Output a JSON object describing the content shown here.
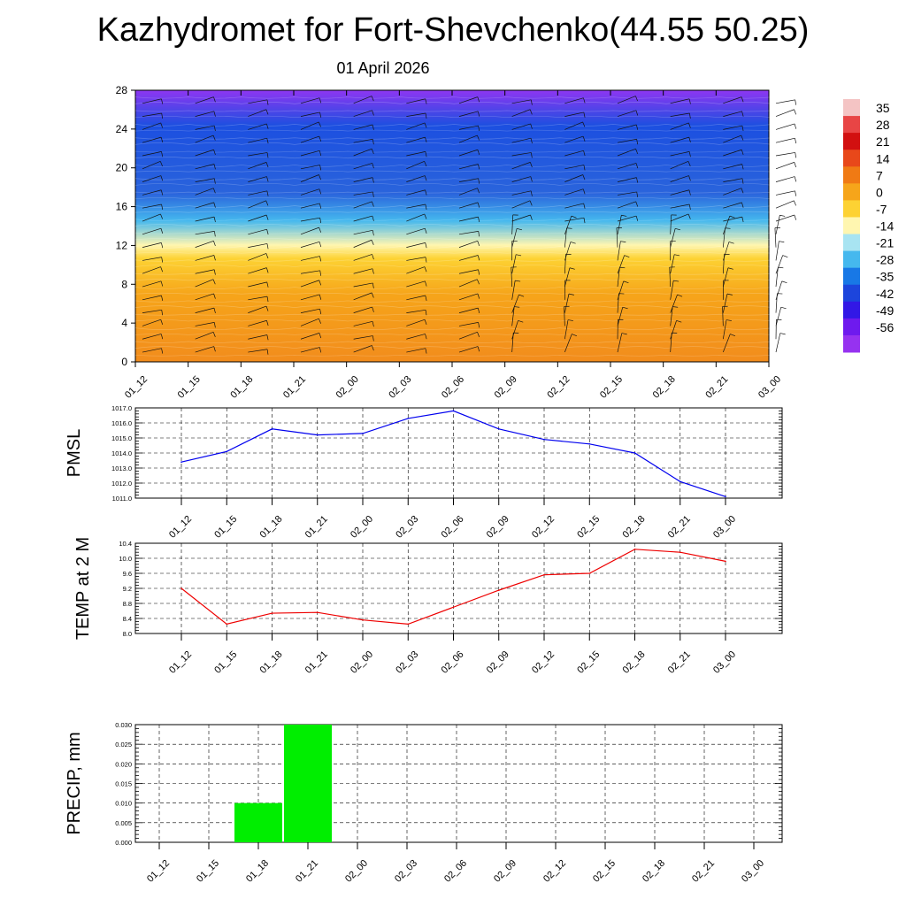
{
  "title": "Kazhydromet for Fort-Shevchenko(44.55 50.25)",
  "subtitle": "01 April 2026",
  "time_labels": [
    "01_12",
    "01_15",
    "01_18",
    "01_21",
    "02_00",
    "02_03",
    "02_06",
    "02_09",
    "02_12",
    "02_15",
    "02_18",
    "02_21",
    "03_00"
  ],
  "chart_data": [
    {
      "type": "heatmap",
      "y_ticks": [
        0,
        4,
        8,
        12,
        16,
        20,
        24,
        28
      ],
      "ylim": [
        0,
        28
      ],
      "categories": [
        "01_12",
        "01_15",
        "01_18",
        "01_21",
        "02_00",
        "02_03",
        "02_06",
        "02_09",
        "02_12",
        "02_15",
        "02_18",
        "02_21",
        "03_00"
      ],
      "colorbar": {
        "labels": [
          "35",
          "28",
          "21",
          "14",
          "7",
          "0",
          "-7",
          "-14",
          "-21",
          "-28",
          "-35",
          "-42",
          "-49",
          "-56"
        ],
        "colors": [
          "#f4c4c4",
          "#e84545",
          "#d21010",
          "#e8481a",
          "#f07a14",
          "#f6a51a",
          "#fdd233",
          "#fff6b0",
          "#a8e4f2",
          "#45b8ee",
          "#1878e6",
          "#1c45dc",
          "#3218e6",
          "#6e1aee",
          "#9632f0"
        ]
      },
      "field_colors": {
        "top": "#8e36f2",
        "upper": "#1c4fe0",
        "mid": "#2a64dc",
        "transition": "#45b8ee",
        "freezing": "#fff6b0",
        "warm": "#fdd233",
        "lower": "#f6a51a",
        "surface": "#f28c1c"
      }
    },
    {
      "type": "line",
      "ylabel": "PMSL",
      "categories": [
        "01_12",
        "01_15",
        "01_18",
        "01_21",
        "02_00",
        "02_03",
        "02_06",
        "02_09",
        "02_12",
        "02_15",
        "02_18",
        "02_21",
        "03_00"
      ],
      "series": [
        {
          "values": [
            1013.4,
            1014.1,
            1015.6,
            1015.2,
            1015.3,
            1016.3,
            1016.8,
            1015.6,
            1014.9,
            1014.6,
            1014.0,
            1012.1,
            1011.1
          ],
          "color": "#0000ee"
        }
      ],
      "ylim": [
        1011.0,
        1017.0
      ],
      "y_ticks": [
        "1011.0",
        "1012.0",
        "1013.0",
        "1014.0",
        "1015.0",
        "1016.0",
        "1017.0"
      ],
      "grid": true
    },
    {
      "type": "line",
      "ylabel": "TEMP at 2 M",
      "categories": [
        "01_12",
        "01_15",
        "01_18",
        "01_21",
        "02_00",
        "02_03",
        "02_06",
        "02_09",
        "02_12",
        "02_15",
        "02_18",
        "02_21",
        "03_00"
      ],
      "series": [
        {
          "values": [
            9.2,
            8.25,
            8.54,
            8.56,
            8.36,
            8.25,
            8.7,
            9.15,
            9.56,
            9.6,
            10.24,
            10.16,
            9.92
          ],
          "color": "#ee0000"
        }
      ],
      "ylim": [
        8.0,
        10.4
      ],
      "y_ticks": [
        "8.0",
        "8.4",
        "8.8",
        "9.2",
        "9.6",
        "10.0",
        "10.4"
      ],
      "grid": true
    },
    {
      "type": "bar",
      "ylabel": "PRECIP, mm",
      "categories": [
        "01_12",
        "01_15",
        "01_18",
        "01_21",
        "02_00",
        "02_03",
        "02_06",
        "02_09",
        "02_12",
        "02_15",
        "02_18",
        "02_21",
        "03_00"
      ],
      "values": [
        0,
        0,
        0.01,
        0.03,
        0,
        0,
        0,
        0,
        0,
        0,
        0,
        0,
        0
      ],
      "color": "#00ee00",
      "ylim": [
        0,
        0.03
      ],
      "y_ticks": [
        "0.000",
        "0.005",
        "0.010",
        "0.015",
        "0.020",
        "0.025",
        "0.030"
      ],
      "grid": true
    }
  ]
}
